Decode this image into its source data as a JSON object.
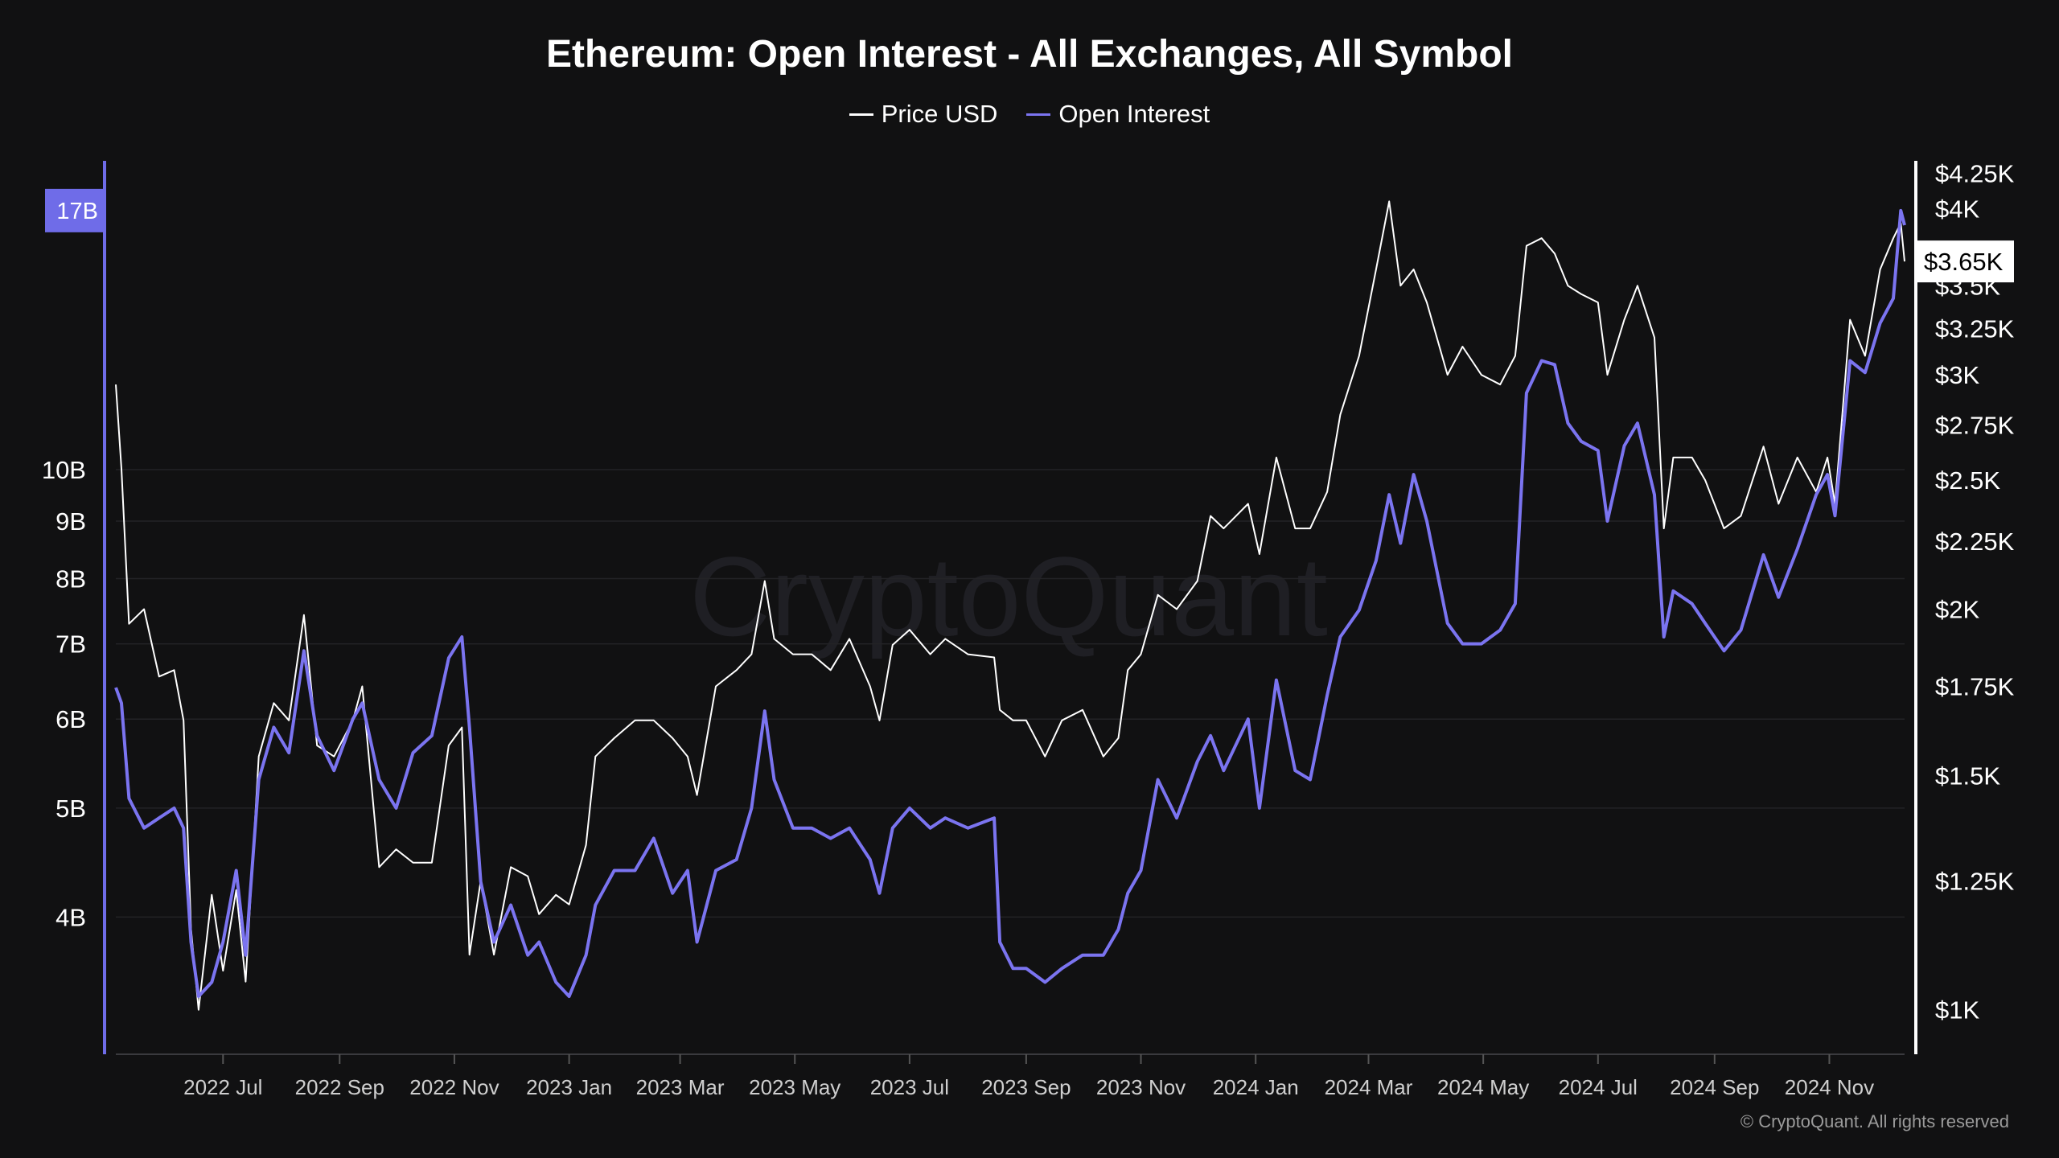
{
  "title": "Ethereum: Open Interest - All Exchanges, All Symbol",
  "watermark": "CryptoQuant",
  "copyright": "© CryptoQuant. All rights reserved",
  "chart_data": {
    "type": "line",
    "title": "Ethereum: Open Interest - All Exchanges, All Symbol",
    "legend_position": "top-center",
    "grid": true,
    "x_range": [
      "2022-05-05",
      "2024-12-11"
    ],
    "x_ticks": [
      "2022 Jul",
      "2022 Sep",
      "2022 Nov",
      "2023 Jan",
      "2023 Mar",
      "2023 May",
      "2023 Jul",
      "2023 Sep",
      "2023 Nov",
      "2024 Jan",
      "2024 Mar",
      "2024 May",
      "2024 Jul",
      "2024 Sep",
      "2024 Nov"
    ],
    "x_tick_dates": [
      "2022-07-01",
      "2022-09-01",
      "2022-11-01",
      "2023-01-01",
      "2023-03-01",
      "2023-05-01",
      "2023-07-01",
      "2023-09-01",
      "2023-11-01",
      "2024-01-01",
      "2024-03-01",
      "2024-05-01",
      "2024-07-01",
      "2024-09-01",
      "2024-11-01"
    ],
    "left_axis": {
      "scale": "log",
      "range": [
        3.02,
        18.7
      ],
      "unit": "B",
      "ticks": [
        4,
        5,
        6,
        7,
        8,
        9,
        10
      ],
      "tick_labels": [
        "4B",
        "5B",
        "6B",
        "7B",
        "8B",
        "9B",
        "10B"
      ],
      "current_value": 17,
      "current_label": "17B",
      "color": "#6f6ce8"
    },
    "right_axis": {
      "scale": "log",
      "range": [
        926,
        4320
      ],
      "ticks": [
        1000,
        1250,
        1500,
        1750,
        2000,
        2250,
        2500,
        2750,
        3000,
        3250,
        3500,
        4000,
        4250
      ],
      "tick_labels": [
        "$1K",
        "$1.25K",
        "$1.5K",
        "$1.75K",
        "$2K",
        "$2.25K",
        "$2.5K",
        "$2.75K",
        "$3K",
        "$3.25K",
        "$3.5K",
        "$4K",
        "$4.25K"
      ],
      "current_value": 3650,
      "current_label": "$3.65K"
    },
    "dates": [
      "2022-05-05",
      "2022-05-08",
      "2022-05-12",
      "2022-05-20",
      "2022-05-28",
      "2022-06-05",
      "2022-06-10",
      "2022-06-14",
      "2022-06-18",
      "2022-06-25",
      "2022-07-01",
      "2022-07-08",
      "2022-07-13",
      "2022-07-20",
      "2022-07-28",
      "2022-08-05",
      "2022-08-13",
      "2022-08-20",
      "2022-08-29",
      "2022-09-08",
      "2022-09-13",
      "2022-09-22",
      "2022-10-01",
      "2022-10-10",
      "2022-10-20",
      "2022-10-29",
      "2022-11-05",
      "2022-11-09",
      "2022-11-15",
      "2022-11-22",
      "2022-12-01",
      "2022-12-10",
      "2022-12-16",
      "2022-12-25",
      "2023-01-01",
      "2023-01-10",
      "2023-01-15",
      "2023-01-25",
      "2023-02-05",
      "2023-02-15",
      "2023-02-25",
      "2023-03-05",
      "2023-03-10",
      "2023-03-20",
      "2023-03-31",
      "2023-04-08",
      "2023-04-15",
      "2023-04-20",
      "2023-04-30",
      "2023-05-10",
      "2023-05-20",
      "2023-05-30",
      "2023-06-10",
      "2023-06-15",
      "2023-06-22",
      "2023-07-01",
      "2023-07-12",
      "2023-07-20",
      "2023-08-01",
      "2023-08-15",
      "2023-08-18",
      "2023-08-25",
      "2023-09-01",
      "2023-09-11",
      "2023-09-20",
      "2023-10-01",
      "2023-10-12",
      "2023-10-20",
      "2023-10-25",
      "2023-11-01",
      "2023-11-10",
      "2023-11-20",
      "2023-12-01",
      "2023-12-08",
      "2023-12-15",
      "2023-12-28",
      "2024-01-03",
      "2024-01-12",
      "2024-01-22",
      "2024-01-30",
      "2024-02-08",
      "2024-02-15",
      "2024-02-25",
      "2024-03-05",
      "2024-03-12",
      "2024-03-18",
      "2024-03-25",
      "2024-04-01",
      "2024-04-12",
      "2024-04-20",
      "2024-04-30",
      "2024-05-10",
      "2024-05-18",
      "2024-05-24",
      "2024-06-01",
      "2024-06-08",
      "2024-06-15",
      "2024-06-22",
      "2024-07-01",
      "2024-07-06",
      "2024-07-15",
      "2024-07-22",
      "2024-07-31",
      "2024-08-05",
      "2024-08-10",
      "2024-08-20",
      "2024-08-27",
      "2024-09-06",
      "2024-09-15",
      "2024-09-27",
      "2024-10-05",
      "2024-10-15",
      "2024-10-25",
      "2024-10-31",
      "2024-11-04",
      "2024-11-12",
      "2024-11-20",
      "2024-11-28",
      "2024-12-05",
      "2024-12-09",
      "2024-12-11"
    ],
    "series": [
      {
        "name": "Price USD",
        "axis": "right",
        "color": "#ffffff",
        "values": [
          2950,
          2550,
          1950,
          2000,
          1780,
          1800,
          1650,
          1150,
          1000,
          1220,
          1070,
          1230,
          1050,
          1550,
          1700,
          1650,
          1980,
          1580,
          1550,
          1650,
          1750,
          1280,
          1320,
          1290,
          1290,
          1580,
          1630,
          1100,
          1250,
          1100,
          1280,
          1260,
          1180,
          1220,
          1200,
          1330,
          1550,
          1600,
          1650,
          1650,
          1600,
          1550,
          1450,
          1750,
          1800,
          1850,
          2100,
          1900,
          1850,
          1850,
          1800,
          1900,
          1750,
          1650,
          1880,
          1930,
          1850,
          1900,
          1850,
          1840,
          1680,
          1650,
          1650,
          1550,
          1650,
          1680,
          1550,
          1600,
          1800,
          1850,
          2050,
          2000,
          2100,
          2350,
          2300,
          2400,
          2200,
          2600,
          2300,
          2300,
          2450,
          2800,
          3100,
          3600,
          4050,
          3500,
          3600,
          3400,
          3000,
          3150,
          3000,
          2950,
          3100,
          3750,
          3800,
          3700,
          3500,
          3450,
          3400,
          3000,
          3300,
          3500,
          3200,
          2300,
          2600,
          2600,
          2500,
          2300,
          2350,
          2650,
          2400,
          2600,
          2450,
          2600,
          2400,
          3300,
          3100,
          3600,
          3800,
          3900,
          3650
        ]
      },
      {
        "name": "Open Interest",
        "axis": "left",
        "color": "#7b74f0",
        "values": [
          6.4,
          6.2,
          5.1,
          4.8,
          4.9,
          5.0,
          4.8,
          3.8,
          3.4,
          3.5,
          3.8,
          4.4,
          3.7,
          5.3,
          5.9,
          5.6,
          6.9,
          5.8,
          5.4,
          6.0,
          6.2,
          5.3,
          5.0,
          5.6,
          5.8,
          6.8,
          7.1,
          5.9,
          4.3,
          3.8,
          4.1,
          3.7,
          3.8,
          3.5,
          3.4,
          3.7,
          4.1,
          4.4,
          4.4,
          4.7,
          4.2,
          4.4,
          3.8,
          4.4,
          4.5,
          5.0,
          6.1,
          5.3,
          4.8,
          4.8,
          4.7,
          4.8,
          4.5,
          4.2,
          4.8,
          5.0,
          4.8,
          4.9,
          4.8,
          4.9,
          3.8,
          3.6,
          3.6,
          3.5,
          3.6,
          3.7,
          3.7,
          3.9,
          4.2,
          4.4,
          5.3,
          4.9,
          5.5,
          5.8,
          5.4,
          6.0,
          5.0,
          6.5,
          5.4,
          5.3,
          6.3,
          7.1,
          7.5,
          8.3,
          9.5,
          8.6,
          9.9,
          9.0,
          7.3,
          7.0,
          7.0,
          7.2,
          7.6,
          11.7,
          12.5,
          12.4,
          11.0,
          10.6,
          10.4,
          9.0,
          10.5,
          11.0,
          9.5,
          7.1,
          7.8,
          7.6,
          7.3,
          6.9,
          7.2,
          8.4,
          7.7,
          8.5,
          9.5,
          9.9,
          9.1,
          12.5,
          12.2,
          13.5,
          14.2,
          17.0,
          16.5
        ]
      }
    ]
  }
}
